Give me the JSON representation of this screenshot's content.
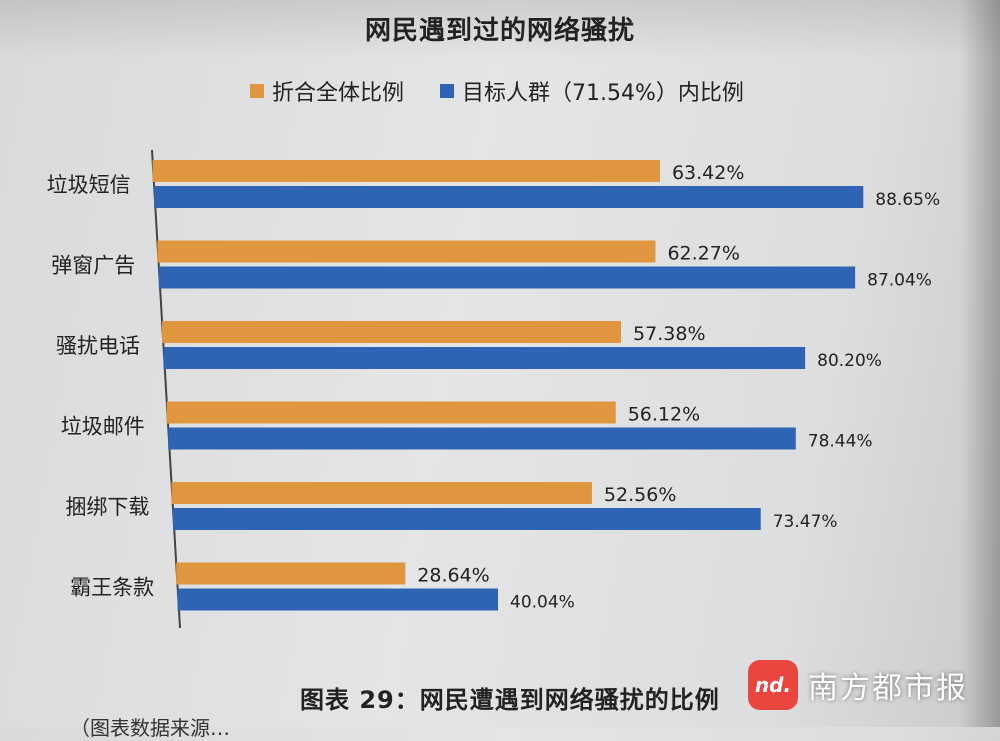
{
  "chart_data": {
    "type": "bar",
    "orientation": "horizontal",
    "title": "网民遇到过的网络骚扰",
    "categories": [
      "垃圾短信",
      "弹窗广告",
      "骚扰电话",
      "垃圾邮件",
      "捆绑下载",
      "霸王条款"
    ],
    "series": [
      {
        "name": "折合全体比例",
        "color": "#e0953f",
        "values": [
          63.42,
          62.27,
          57.38,
          56.12,
          52.56,
          28.64
        ],
        "labels": [
          "63.42%",
          "62.27%",
          "57.38%",
          "56.12%",
          "52.56%",
          "28.64%"
        ]
      },
      {
        "name": "目标人群（71.54%）内比例",
        "color": "#2f63b4",
        "values": [
          88.65,
          87.04,
          80.2,
          78.44,
          73.47,
          40.04
        ],
        "labels": [
          "88.65%",
          "87.04%",
          "80.20%",
          "78.44%",
          "73.47%",
          "40.04%"
        ]
      }
    ],
    "legend": "top",
    "grid": false
  },
  "caption": "图表 29：网民遭遇到网络骚扰的比例",
  "caption_sub": "（图表数据来源…",
  "watermark": {
    "mark": "nd.",
    "text": "南方都市报"
  }
}
